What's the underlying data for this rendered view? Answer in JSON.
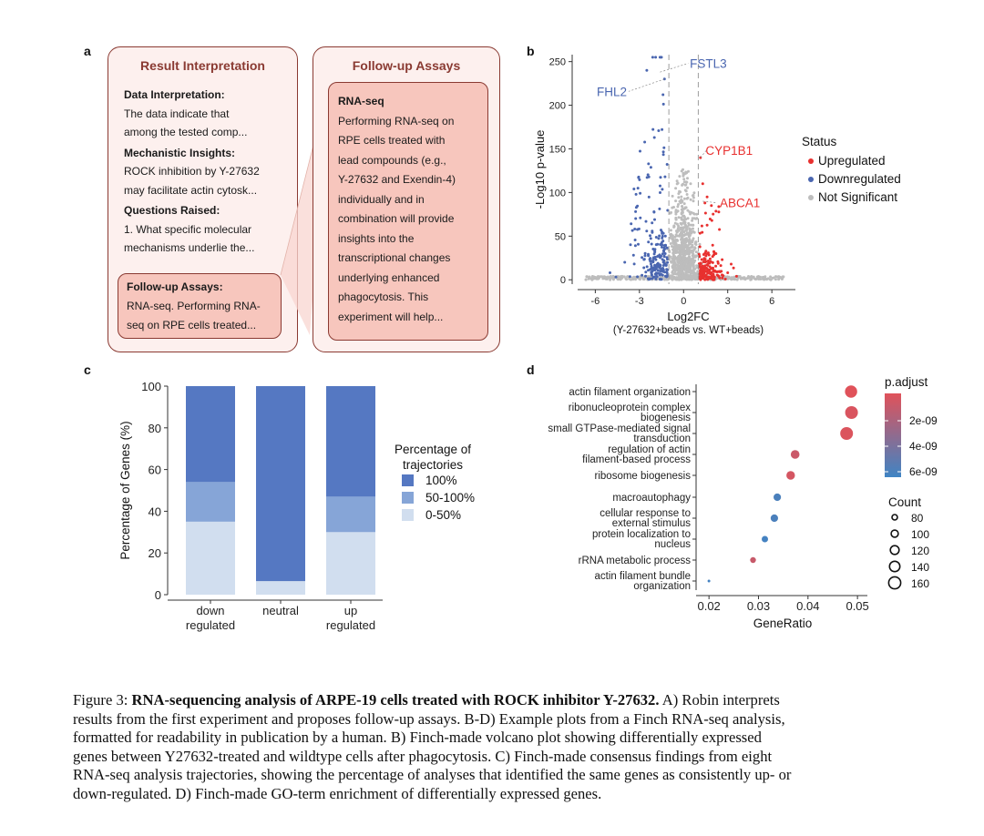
{
  "panel_a": {
    "letter": "a",
    "card1": {
      "title": "Result Interpretation",
      "h1": "Data Interpretation:",
      "l1a": "The data indicate that",
      "l1b": "among the tested comp...",
      "h2": "Mechanistic Insights:",
      "l2a": "ROCK inhibition by Y-27632",
      "l2b": "may facilitate actin cytosk...",
      "h3": "Questions Raised:",
      "l3a": "1. What specific molecular",
      "l3b": "mechanisms underlie the...",
      "box_h": "Follow-up Assays:",
      "box_a": "RNA-seq. Performing RNA-",
      "box_b": "seq on RPE cells treated..."
    },
    "card2": {
      "title": "Follow-up Assays",
      "box_h": "RNA-seq",
      "lines": [
        "Performing RNA-seq on",
        "RPE cells treated with",
        "lead compounds (e.g.,",
        "Y-27632 and Exendin-4)",
        "individually and in",
        "combination will provide",
        "insights into the",
        "transcriptional changes",
        "underlying enhanced",
        "phagocytosis. This",
        "experiment will help..."
      ]
    }
  },
  "chart_data": [
    {
      "type": "scatter",
      "panel": "b",
      "title": "",
      "xlabel": "Log2FC",
      "xlabel_sub": "(Y-27632+beads vs. WT+beads)",
      "ylabel": "-Log10 p-value",
      "xlim": [
        -7.2,
        7.6
      ],
      "ylim": [
        -5,
        258
      ],
      "xticks": [
        -6,
        -3,
        0,
        3,
        6
      ],
      "yticks": [
        0,
        50,
        100,
        150,
        200,
        250
      ],
      "thresholds": {
        "x": [
          -1,
          1
        ]
      },
      "legend": {
        "title": "Status",
        "entries": [
          {
            "label": "Upregulated",
            "color": "#e8302f"
          },
          {
            "label": "Downregulated",
            "color": "#4a66b0"
          },
          {
            "label": "Not Significant",
            "color": "#bdbdbd"
          }
        ]
      },
      "annotations": [
        {
          "label": "FHL2",
          "x": -2.0,
          "y": 218,
          "color": "#4a66b0"
        },
        {
          "label": "FSTL3",
          "x": -0.8,
          "y": 248,
          "color": "#4a66b0"
        },
        {
          "label": "CYP1B1",
          "x": 1.05,
          "y": 143,
          "color": "#e8302f"
        },
        {
          "label": "ABCA1",
          "x": 1.6,
          "y": 83,
          "color": "#e8302f"
        }
      ]
    },
    {
      "type": "bar",
      "panel": "c",
      "stacked": true,
      "title": "",
      "xlabel": "",
      "ylabel": "Percentage of Genes (%)",
      "ylim": [
        0,
        100
      ],
      "yticks": [
        0,
        20,
        40,
        60,
        80,
        100
      ],
      "categories": [
        [
          "down",
          "regulated"
        ],
        [
          "neutral"
        ],
        [
          "up",
          "regulated"
        ]
      ],
      "series": [
        {
          "name": "0-50%",
          "values": [
            35,
            6.5,
            30
          ],
          "color": "#d1deef"
        },
        {
          "name": "50-100%",
          "values": [
            19,
            0,
            17
          ],
          "color": "#86a5d7"
        },
        {
          "name": "100%",
          "values": [
            46,
            93.5,
            53
          ],
          "color": "#5578c2"
        }
      ],
      "legend": {
        "title_lines": [
          "Percentage of",
          "trajectories"
        ],
        "entries": [
          {
            "label": "100%",
            "color": "#5578c2"
          },
          {
            "label": "50-100%",
            "color": "#86a5d7"
          },
          {
            "label": "0-50%",
            "color": "#d1deef"
          }
        ]
      }
    },
    {
      "type": "scatter",
      "subtype": "dotplot",
      "panel": "d",
      "title": "",
      "xlabel": "GeneRatio",
      "ylabel": "",
      "xlim": [
        0.0185,
        0.052
      ],
      "xticks": [
        0.02,
        0.03,
        0.04,
        0.05
      ],
      "xtick_labels": [
        "0.02",
        "0.03",
        "0.04",
        "0.05"
      ],
      "terms": [
        {
          "label": [
            "actin filament organization"
          ],
          "x": 0.0487,
          "count": 155,
          "padj": 5e-10
        },
        {
          "label": [
            "ribonucleoprotein complex",
            "biogenesis"
          ],
          "x": 0.0488,
          "count": 160,
          "padj": 8e-10
        },
        {
          "label": [
            "small GTPase-mediated signal",
            "transduction"
          ],
          "x": 0.0478,
          "count": 160,
          "padj": 7e-10
        },
        {
          "label": [
            "regulation of actin",
            "filament-based process"
          ],
          "x": 0.0374,
          "count": 122,
          "padj": 1.4e-09
        },
        {
          "label": [
            "ribosome biogenesis"
          ],
          "x": 0.0365,
          "count": 120,
          "padj": 1e-09
        },
        {
          "label": [
            "macroautophagy"
          ],
          "x": 0.0338,
          "count": 110,
          "padj": 6.5e-09
        },
        {
          "label": [
            "cellular response to",
            "external stimulus"
          ],
          "x": 0.0332,
          "count": 110,
          "padj": 6.5e-09
        },
        {
          "label": [
            "protein localization to",
            "nucleus"
          ],
          "x": 0.0313,
          "count": 100,
          "padj": 6.8e-09
        },
        {
          "label": [
            "rRNA metabolic process"
          ],
          "x": 0.0289,
          "count": 95,
          "padj": 1.5e-09
        },
        {
          "label": [
            "actin filament bundle",
            "organization"
          ],
          "x": 0.02,
          "count": 65,
          "padj": 6.8e-09
        }
      ],
      "color_legend": {
        "title": "p.adjust",
        "labels": [
          "2e-09",
          "4e-09",
          "6e-09"
        ],
        "low_color": "#e0525a",
        "high_color": "#3f84c4"
      },
      "size_legend": {
        "title": "Count",
        "values": [
          80,
          100,
          120,
          140,
          160
        ]
      }
    }
  ],
  "caption": {
    "prefix": "Figure 3: ",
    "bold": "RNA-sequencing analysis of ARPE-19 cells treated with ROCK inhibitor Y-27632.",
    "lines": [
      "A) Robin interprets",
      "results from the first experiment and proposes follow-up assays. B-D) Example plots from a Finch RNA-seq analysis,",
      "formatted for readability in publication by a human. B) Finch-made volcano plot showing differentially expressed",
      "genes between Y27632-treated and wildtype cells after phagocytosis. C) Finch-made consensus findings from eight",
      "RNA-seq analysis trajectories, showing the percentage of analyses that identified the same genes as consistently up- or",
      "down-regulated. D) Finch-made GO-term enrichment of differentially expressed genes."
    ]
  },
  "panel_letters": {
    "b": "b",
    "c": "c",
    "d": "d"
  }
}
